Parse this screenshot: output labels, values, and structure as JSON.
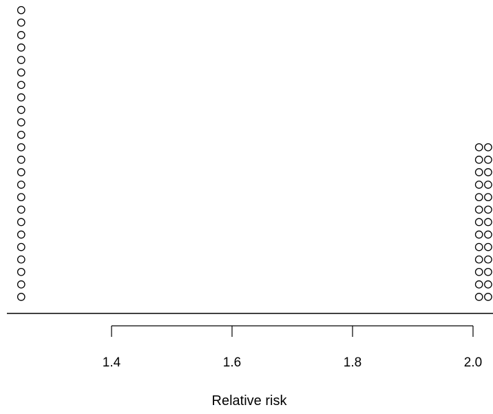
{
  "chart_data": {
    "type": "scatter",
    "title": "",
    "xlabel": "Relative risk",
    "ylabel": "",
    "x_ticks": [
      "1.4",
      "1.6",
      "1.8",
      "2.0"
    ],
    "series": [
      {
        "x": 1.25,
        "count": 24
      },
      {
        "x": 2.01,
        "count": 13
      },
      {
        "x": 2.025,
        "count": 13
      }
    ],
    "grid": false,
    "legend": "none",
    "colors": {
      "marker_stroke": "#000000",
      "axis": "#000000"
    }
  }
}
